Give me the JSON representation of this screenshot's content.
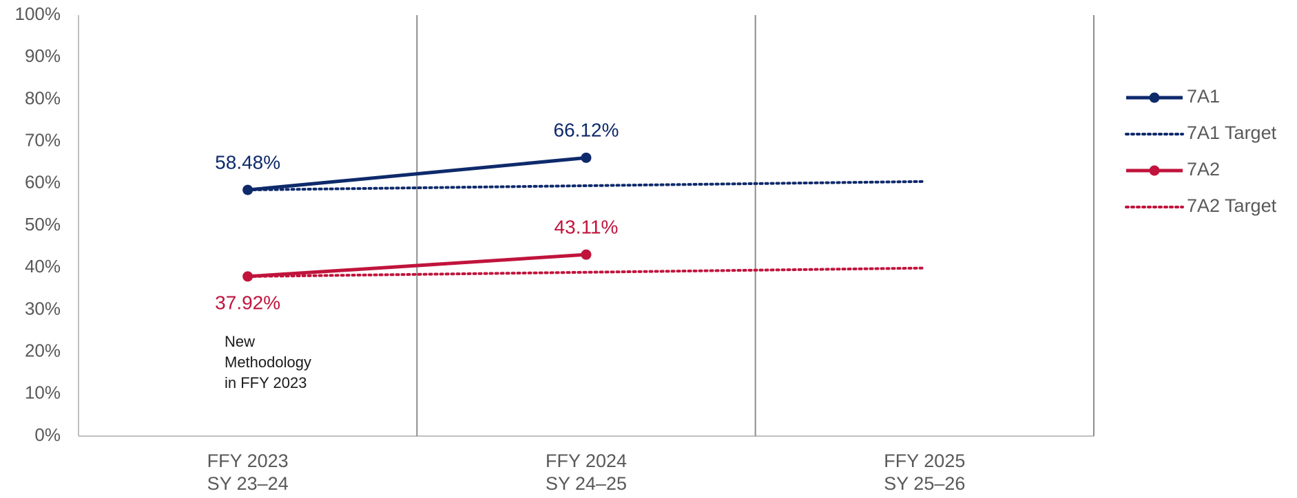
{
  "chart_data": {
    "type": "line",
    "categories": [
      [
        "FFY 2023",
        "SY 23–24"
      ],
      [
        "FFY 2024",
        "SY 24–25"
      ],
      [
        "FFY 2025",
        "SY 25–26"
      ]
    ],
    "series": [
      {
        "name": "7A1",
        "color": "#0e2a6b",
        "dotted": false,
        "marker": true,
        "values": [
          58.48,
          66.12,
          null
        ],
        "value_labels": [
          "58.48%",
          "66.12%",
          null
        ],
        "label_positions": [
          "above",
          "above",
          null
        ]
      },
      {
        "name": "7A1 Target",
        "color": "#0e2a6b",
        "dotted": true,
        "marker": false,
        "values": [
          58.48,
          59.48,
          60.48
        ]
      },
      {
        "name": "7A2",
        "color": "#c0143c",
        "dotted": false,
        "marker": true,
        "values": [
          37.92,
          43.11,
          null
        ],
        "value_labels": [
          "37.92%",
          "43.11%",
          null
        ],
        "label_positions": [
          "below",
          "above",
          null
        ]
      },
      {
        "name": "7A2 Target",
        "color": "#c0143c",
        "dotted": true,
        "marker": false,
        "values": [
          37.92,
          38.92,
          39.92
        ]
      }
    ],
    "annotation": [
      "New",
      "Methodology",
      "in FFY 2023"
    ],
    "ylim": [
      0,
      100
    ],
    "yticks": [
      {
        "value": 0,
        "label": "0%"
      },
      {
        "value": 10,
        "label": "10%"
      },
      {
        "value": 20,
        "label": "20%"
      },
      {
        "value": 30,
        "label": "30%"
      },
      {
        "value": 40,
        "label": "40%"
      },
      {
        "value": 50,
        "label": "50%"
      },
      {
        "value": 60,
        "label": "60%"
      },
      {
        "value": 70,
        "label": "70%"
      },
      {
        "value": 80,
        "label": "80%"
      },
      {
        "value": 90,
        "label": "90%"
      },
      {
        "value": 100,
        "label": "100%"
      }
    ],
    "legend": "right"
  }
}
